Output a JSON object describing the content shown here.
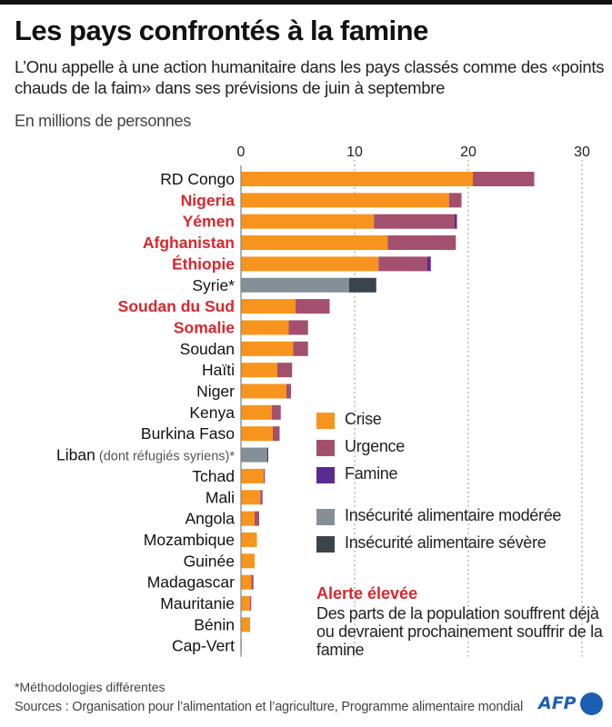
{
  "header": {
    "title": "Les pays confrontés à la famine",
    "subtitle": "L’Onu appelle à une action humanitaire dans les pays classés comme des «points chauds de la faim» dans ses prévisions de juin à septembre",
    "unit": "En millions de personnes"
  },
  "colors": {
    "crise": "#f7941d",
    "urgence": "#a3506f",
    "famine": "#5b2a91",
    "moderee": "#858f97",
    "severe": "#3c444b",
    "alert_red": "#d9272e",
    "afp_blue": "#1b5fb3"
  },
  "chart_data": {
    "type": "bar",
    "orientation": "horizontal",
    "stacked": true,
    "title": "Les pays confrontés à la famine",
    "xlabel": "En millions de personnes",
    "ylabel": "",
    "xlim": [
      0,
      30
    ],
    "xticks": [
      0,
      10,
      20,
      30
    ],
    "grid": true,
    "categories": [
      "RD Congo",
      "Nigeria",
      "Yémen",
      "Afghanistan",
      "Éthiopie",
      "Syrie*",
      "Soudan du Sud",
      "Somalie",
      "Soudan",
      "Haïti",
      "Niger",
      "Kenya",
      "Burkina Faso",
      "Liban",
      "Tchad",
      "Mali",
      "Angola",
      "Mozambique",
      "Guinée",
      "Madagascar",
      "Mauritanie",
      "Bénin",
      "Cap-Vert"
    ],
    "category_suffix": {
      "Liban": " (dont réfugiés syriens)*"
    },
    "high_alert": [
      "Nigeria",
      "Yémen",
      "Afghanistan",
      "Éthiopie",
      "Soudan du Sud",
      "Somalie"
    ],
    "series": [
      {
        "name": "Crise",
        "key": "crise",
        "values": [
          20.4,
          18.3,
          11.7,
          12.9,
          12.1,
          0,
          4.8,
          4.2,
          4.6,
          3.2,
          4.0,
          2.7,
          2.8,
          0,
          2.0,
          1.7,
          1.2,
          1.4,
          1.2,
          0.9,
          0.8,
          0.8,
          0.05
        ]
      },
      {
        "name": "Urgence",
        "key": "urgence",
        "values": [
          5.4,
          1.1,
          7.1,
          6.0,
          4.3,
          0,
          3.0,
          1.7,
          1.3,
          1.3,
          0.4,
          0.8,
          0.6,
          0,
          0.1,
          0.2,
          0.4,
          0,
          0,
          0.2,
          0.1,
          0,
          0
        ]
      },
      {
        "name": "Famine",
        "key": "famine",
        "values": [
          0,
          0,
          0.2,
          0,
          0.3,
          0,
          0,
          0,
          0,
          0,
          0,
          0,
          0,
          0,
          0,
          0,
          0,
          0,
          0,
          0,
          0,
          0,
          0
        ]
      },
      {
        "name": "Insécurité alimentaire modérée",
        "key": "moderee",
        "values": [
          0,
          0,
          0,
          0,
          0,
          9.5,
          0,
          0,
          0,
          0,
          0,
          0,
          0,
          2.3,
          0,
          0,
          0,
          0,
          0,
          0,
          0,
          0,
          0
        ]
      },
      {
        "name": "Insécurité alimentaire sévère",
        "key": "severe",
        "values": [
          0,
          0,
          0,
          0,
          0,
          2.4,
          0,
          0,
          0,
          0,
          0,
          0,
          0,
          0.1,
          0,
          0,
          0,
          0,
          0,
          0,
          0,
          0,
          0
        ]
      }
    ],
    "legend_position": "bottom-right"
  },
  "legend": {
    "items": [
      {
        "label": "Crise",
        "key": "crise"
      },
      {
        "label": "Urgence",
        "key": "urgence"
      },
      {
        "label": "Famine",
        "key": "famine"
      },
      {
        "label": "Insécurité alimentaire modérée",
        "key": "moderee"
      },
      {
        "label": "Insécurité alimentaire sévère",
        "key": "severe"
      }
    ]
  },
  "alert": {
    "title": "Alerte élevée",
    "text": "Des parts de la population souffrent déjà ou devraient prochainement souffrir de la famine"
  },
  "footer": {
    "note": "*Méthodologies différentes",
    "sources": "Sources : Organisation pour l’alimentation et l’agriculture, Programme alimentaire mondial",
    "logo": "AFP"
  }
}
